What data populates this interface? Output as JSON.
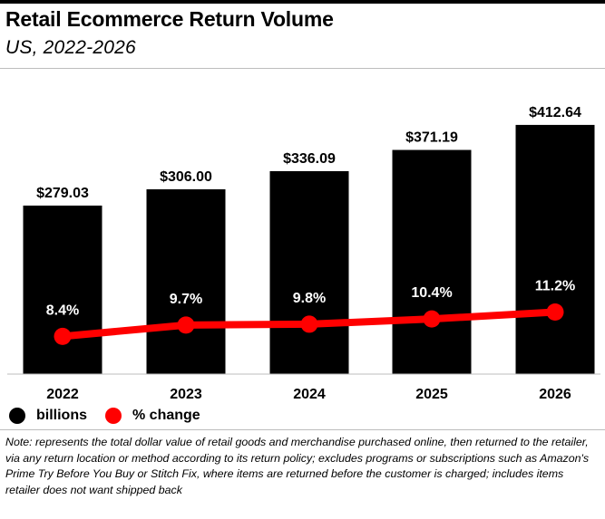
{
  "header": {
    "title": "Retail Ecommerce Return Volume",
    "subtitle": "US, 2022-2026"
  },
  "chart_data": {
    "type": "bar",
    "title": "Retail Ecommerce Return Volume",
    "subtitle": "US, 2022-2026",
    "categories": [
      "2022",
      "2023",
      "2024",
      "2025",
      "2026"
    ],
    "series": [
      {
        "name": "billions",
        "type": "bar",
        "color": "#000000",
        "values": [
          279.03,
          306.0,
          336.09,
          371.19,
          412.64
        ],
        "labels": [
          "$279.03",
          "$306.00",
          "$336.09",
          "$371.19",
          "$412.64"
        ]
      },
      {
        "name": "% change",
        "type": "line",
        "color": "#ff0000",
        "values": [
          8.4,
          9.7,
          9.8,
          10.4,
          11.2
        ],
        "labels": [
          "8.4%",
          "9.7%",
          "9.8%",
          "10.4%",
          "11.2%"
        ]
      }
    ],
    "ylim": [
      0,
      480
    ],
    "grid": false,
    "legend_position": "bottom-left"
  },
  "legend": {
    "items": [
      {
        "label": "billions",
        "color": "#000000"
      },
      {
        "label": "% change",
        "color": "#ff0000"
      }
    ]
  },
  "note": "Note: represents the total dollar value of retail goods and merchandise purchased online, then returned to the retailer, via any return location or method according to its return policy; excludes programs or subscriptions such as Amazon's Prime Try Before You Buy or Stitch Fix, where items are returned before the customer is charged; includes items retailer does not want shipped back"
}
